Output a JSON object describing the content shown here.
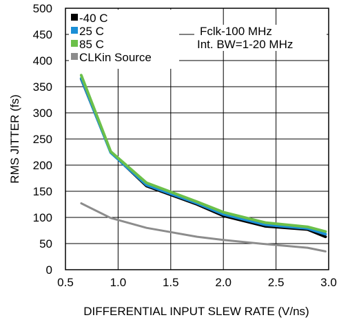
{
  "chart_data": {
    "type": "line",
    "xlabel": "DIFFERENTIAL INPUT SLEW RATE (V/ns)",
    "ylabel": "RMS JITTER (fs)",
    "xlim": [
      0.5,
      3.0
    ],
    "ylim": [
      0,
      500
    ],
    "xticks": [
      "0.5",
      "1.0",
      "1.5",
      "2.0",
      "2.5",
      "3.0"
    ],
    "yticks": [
      "0",
      "50",
      "100",
      "150",
      "200",
      "250",
      "300",
      "350",
      "400",
      "450",
      "500"
    ],
    "grid": true,
    "legend_position": "top-left",
    "annotations": [
      "Fclk-100 MHz",
      "Int. BW=1-20 MHz"
    ],
    "series": [
      {
        "name": "-40 C",
        "color": "#000000",
        "x": [
          0.65,
          0.93,
          1.27,
          1.75,
          2.0,
          2.4,
          2.8,
          2.97
        ],
        "y": [
          365,
          225,
          160,
          125,
          103,
          83,
          77,
          63
        ]
      },
      {
        "name": "25 C",
        "color": "#1b8fd6",
        "x": [
          0.65,
          0.93,
          1.27,
          1.75,
          2.0,
          2.4,
          2.8,
          2.97
        ],
        "y": [
          366,
          224,
          162,
          127,
          106,
          86,
          79,
          68
        ]
      },
      {
        "name": "85 C",
        "color": "#6cc04a",
        "x": [
          0.65,
          0.93,
          1.27,
          1.75,
          2.0,
          2.4,
          2.8,
          2.97
        ],
        "y": [
          372,
          226,
          166,
          130,
          110,
          90,
          82,
          73
        ]
      },
      {
        "name": "CLKin Source",
        "color": "#8c8c8c",
        "x": [
          0.65,
          0.93,
          1.27,
          1.75,
          2.0,
          2.4,
          2.8,
          2.97
        ],
        "y": [
          127,
          99,
          80,
          63,
          57,
          49,
          42,
          35
        ]
      }
    ]
  }
}
